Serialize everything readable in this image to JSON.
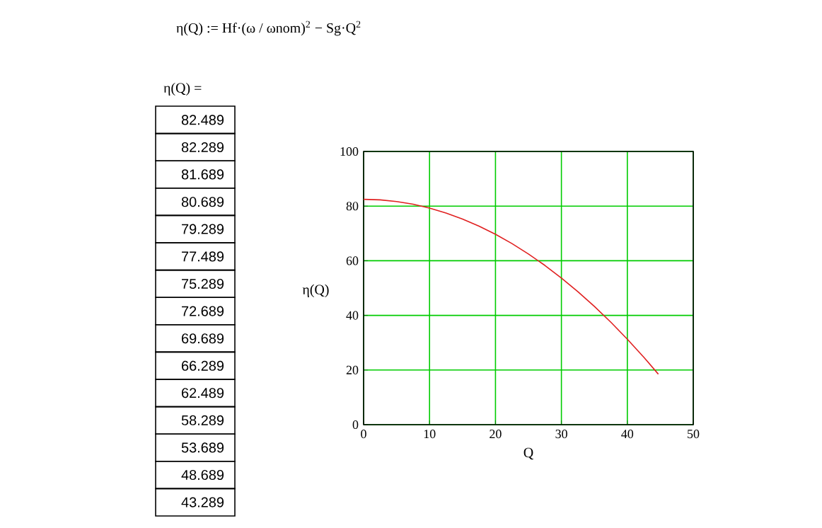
{
  "chart_data": {
    "type": "line",
    "x": [
      0,
      2.5,
      5,
      7.5,
      10,
      12.5,
      15,
      17.5,
      20,
      22.5,
      25,
      27.5,
      30,
      32.5,
      35,
      37.5,
      40,
      42.5,
      44.7
    ],
    "series": [
      {
        "color": "#e02020",
        "values": [
          82.489,
          82.289,
          81.689,
          80.689,
          79.289,
          77.489,
          75.289,
          72.689,
          69.689,
          66.289,
          62.489,
          58.289,
          53.689,
          48.689,
          43.289,
          37.5,
          31.3,
          24.7,
          18.5
        ]
      }
    ],
    "xlabel": "Q",
    "ylabel": "η(Q)",
    "xlim": [
      0,
      50
    ],
    "xticks": [
      0,
      10,
      20,
      30,
      40,
      50
    ],
    "ylim": [
      0,
      100
    ],
    "yticks": [
      0,
      20,
      40,
      60,
      80,
      100
    ],
    "grid": true,
    "annotations": [
      "η(Q) := Hf·(ω / ωnom)$^{2}$ − Sg·Q$^{2}$",
      "η(Q) =",
      "82.489",
      "82.289",
      "81.689",
      "80.689",
      "79.289",
      "77.489",
      "75.289",
      "72.689",
      "69.689",
      "66.289",
      "62.489",
      "58.289",
      "53.689",
      "48.689",
      "43.289"
    ]
  }
}
